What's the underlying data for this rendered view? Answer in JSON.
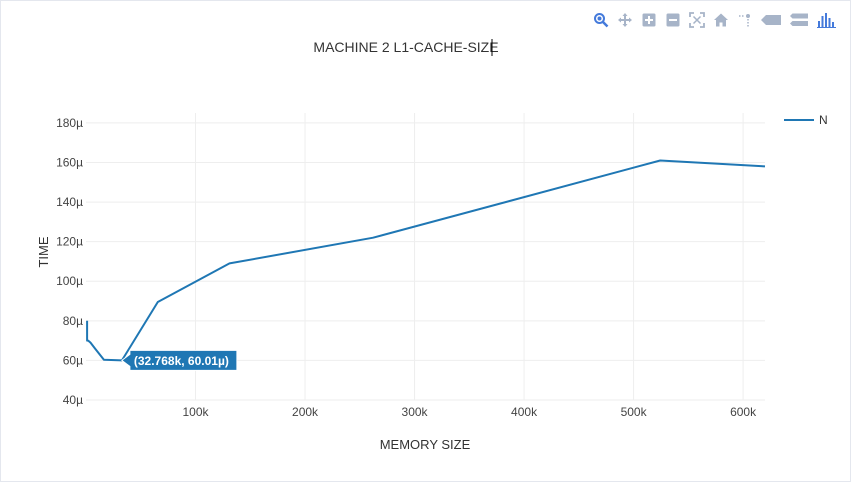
{
  "modebar": {
    "buttons": [
      {
        "name": "zoom-icon",
        "icon": "magnifier"
      },
      {
        "name": "pan-icon",
        "icon": "cross-arrows"
      },
      {
        "name": "zoom-in-icon",
        "icon": "plus-box"
      },
      {
        "name": "zoom-out-icon",
        "icon": "minus-box"
      },
      {
        "name": "autoscale-icon",
        "icon": "expand"
      },
      {
        "name": "reset-axes-icon",
        "icon": "home"
      },
      {
        "name": "spike-lines-icon",
        "icon": "spikes"
      },
      {
        "name": "hover-closest-icon",
        "icon": "tag"
      },
      {
        "name": "hover-compare-icon",
        "icon": "tags"
      },
      {
        "name": "plotly-logo-icon",
        "icon": "bars"
      }
    ],
    "accent": "#447adb",
    "icon_color": "#a7b4c8"
  },
  "chart_data": {
    "type": "line",
    "title": "MACHINE 2 L1-CACHE-SIZE",
    "xlabel": "MEMORY SIZE",
    "ylabel": "TIME",
    "xlim": [
      0,
      620000
    ],
    "ylim": [
      40,
      185
    ],
    "x_ticks": [
      100000,
      200000,
      300000,
      400000,
      500000,
      600000
    ],
    "x_tick_labels": [
      "100k",
      "200k",
      "300k",
      "400k",
      "500k",
      "600k"
    ],
    "y_ticks": [
      40,
      60,
      80,
      100,
      120,
      140,
      160,
      180
    ],
    "y_tick_labels": [
      "40µ",
      "60µ",
      "80µ",
      "100µ",
      "120µ",
      "140µ",
      "160µ",
      "180µ"
    ],
    "grid": true,
    "legend": {
      "position": "top-right"
    },
    "series": [
      {
        "name": "N",
        "color": "#1f77b4",
        "x": [
          1024,
          1024,
          2048,
          4096,
          8192,
          16384,
          32768,
          65536,
          131072,
          262144,
          524288,
          620000
        ],
        "y": [
          80,
          70,
          70,
          69,
          66,
          60.3,
          60.01,
          89.5,
          109,
          122,
          161,
          158
        ]
      }
    ],
    "hover": {
      "x": 32768,
      "y": 60.01,
      "label": "(32.768k, 60.01µ)"
    }
  }
}
